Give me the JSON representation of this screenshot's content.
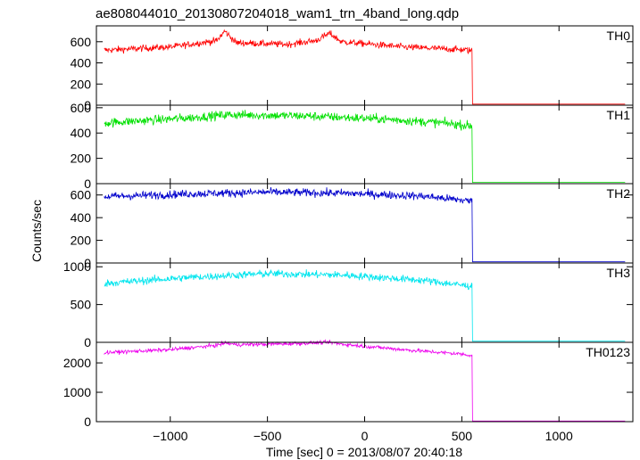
{
  "chart_data": {
    "type": "line",
    "title": "ae808044010_20130807204018_wam1_trn_4band_long.qdp",
    "xlabel": "Time [sec] 0 = 2013/08/07 20:40:18",
    "ylabel": "Counts/sec",
    "xlim": [
      -1380,
      1380
    ],
    "x_ticks": [
      -1000,
      -500,
      0,
      500,
      1000
    ],
    "x_tick_labels": [
      "−1000",
      "−500",
      "0",
      "500",
      "1000"
    ],
    "data_x_start": -1340,
    "data_x_end": 1340,
    "drop_time": 555,
    "panels": [
      {
        "name": "TH0",
        "color": "#ff0000",
        "ylim": [
          0,
          750
        ],
        "yticks": [
          0,
          200,
          400,
          600
        ],
        "ytick_labels": [
          "0",
          "200",
          "400",
          "600"
        ],
        "noise": 22,
        "tail": 10,
        "profile": [
          [
            -1340,
            520
          ],
          [
            -1000,
            550
          ],
          [
            -760,
            610
          ],
          [
            -720,
            700
          ],
          [
            -660,
            590
          ],
          [
            -400,
            575
          ],
          [
            -250,
            610
          ],
          [
            -180,
            680
          ],
          [
            -120,
            600
          ],
          [
            200,
            550
          ],
          [
            500,
            525
          ],
          [
            555,
            515
          ]
        ]
      },
      {
        "name": "TH1",
        "color": "#00e000",
        "ylim": [
          0,
          620
        ],
        "yticks": [
          0,
          200,
          400,
          600
        ],
        "ytick_labels": [
          "0",
          "200",
          "400",
          "600"
        ],
        "noise": 25,
        "tail": 10,
        "profile": [
          [
            -1340,
            480
          ],
          [
            -900,
            520
          ],
          [
            -700,
            545
          ],
          [
            -300,
            535
          ],
          [
            100,
            510
          ],
          [
            400,
            480
          ],
          [
            555,
            455
          ]
        ]
      },
      {
        "name": "TH2",
        "color": "#0000cc",
        "ylim": [
          0,
          700
        ],
        "yticks": [
          0,
          200,
          400,
          600
        ],
        "ytick_labels": [
          "0",
          "200",
          "400",
          "600"
        ],
        "noise": 25,
        "tail": 10,
        "profile": [
          [
            -1340,
            585
          ],
          [
            -900,
            610
          ],
          [
            -500,
            625
          ],
          [
            -100,
            615
          ],
          [
            300,
            590
          ],
          [
            555,
            545
          ]
        ]
      },
      {
        "name": "TH3",
        "color": "#00e5ee",
        "ylim": [
          0,
          1050
        ],
        "yticks": [
          0,
          500,
          1000
        ],
        "ytick_labels": [
          "0",
          "500",
          "1000"
        ],
        "noise": 35,
        "tail": 15,
        "profile": [
          [
            -1340,
            780
          ],
          [
            -900,
            860
          ],
          [
            -500,
            910
          ],
          [
            -100,
            890
          ],
          [
            300,
            820
          ],
          [
            555,
            740
          ]
        ]
      },
      {
        "name": "TH0123",
        "color": "#ee00ee",
        "ylim": [
          0,
          2700
        ],
        "yticks": [
          0,
          1000,
          2000
        ],
        "ytick_labels": [
          "0",
          "1000",
          "2000"
        ],
        "noise": 45,
        "tail": 20,
        "profile": [
          [
            -1340,
            2350
          ],
          [
            -1000,
            2450
          ],
          [
            -760,
            2600
          ],
          [
            -720,
            2680
          ],
          [
            -660,
            2620
          ],
          [
            -400,
            2650
          ],
          [
            -180,
            2700
          ],
          [
            -120,
            2640
          ],
          [
            200,
            2450
          ],
          [
            500,
            2300
          ],
          [
            555,
            2250
          ]
        ]
      }
    ]
  }
}
